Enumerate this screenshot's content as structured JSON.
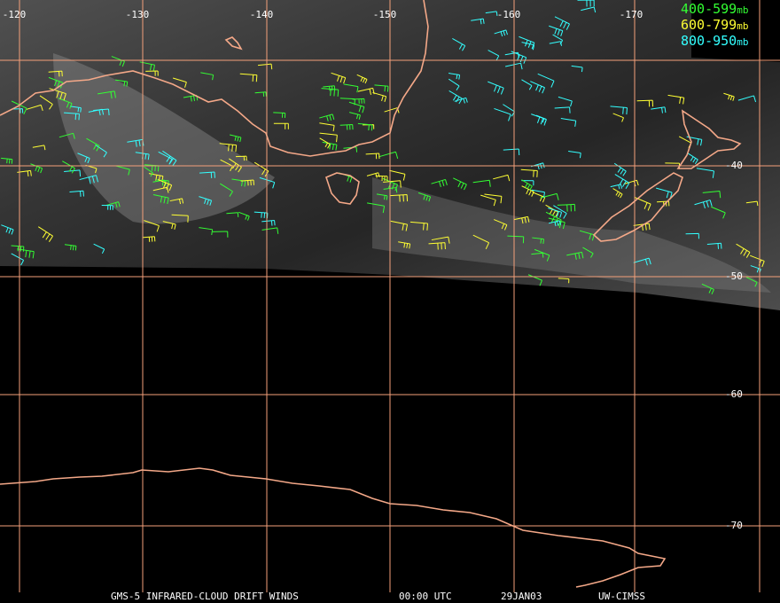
{
  "map": {
    "longitude_labels": [
      "-120",
      "-130",
      "-140",
      "-150",
      "-160",
      "-170"
    ],
    "latitude_labels": [
      "-40",
      "-50",
      "-60",
      "-70"
    ],
    "legend": [
      {
        "range": "400-599",
        "unit": "mb",
        "color": "#33ff33"
      },
      {
        "range": "600-799",
        "unit": "mb",
        "color": "#ffff33"
      },
      {
        "range": "800-950",
        "unit": "mb",
        "color": "#33ffff"
      }
    ],
    "footer": [
      "GMS-5 INFRARED-CLOUD DRIFT WINDS",
      "00:00 UTC",
      "29JAN03",
      "UW-CIMSS"
    ]
  }
}
